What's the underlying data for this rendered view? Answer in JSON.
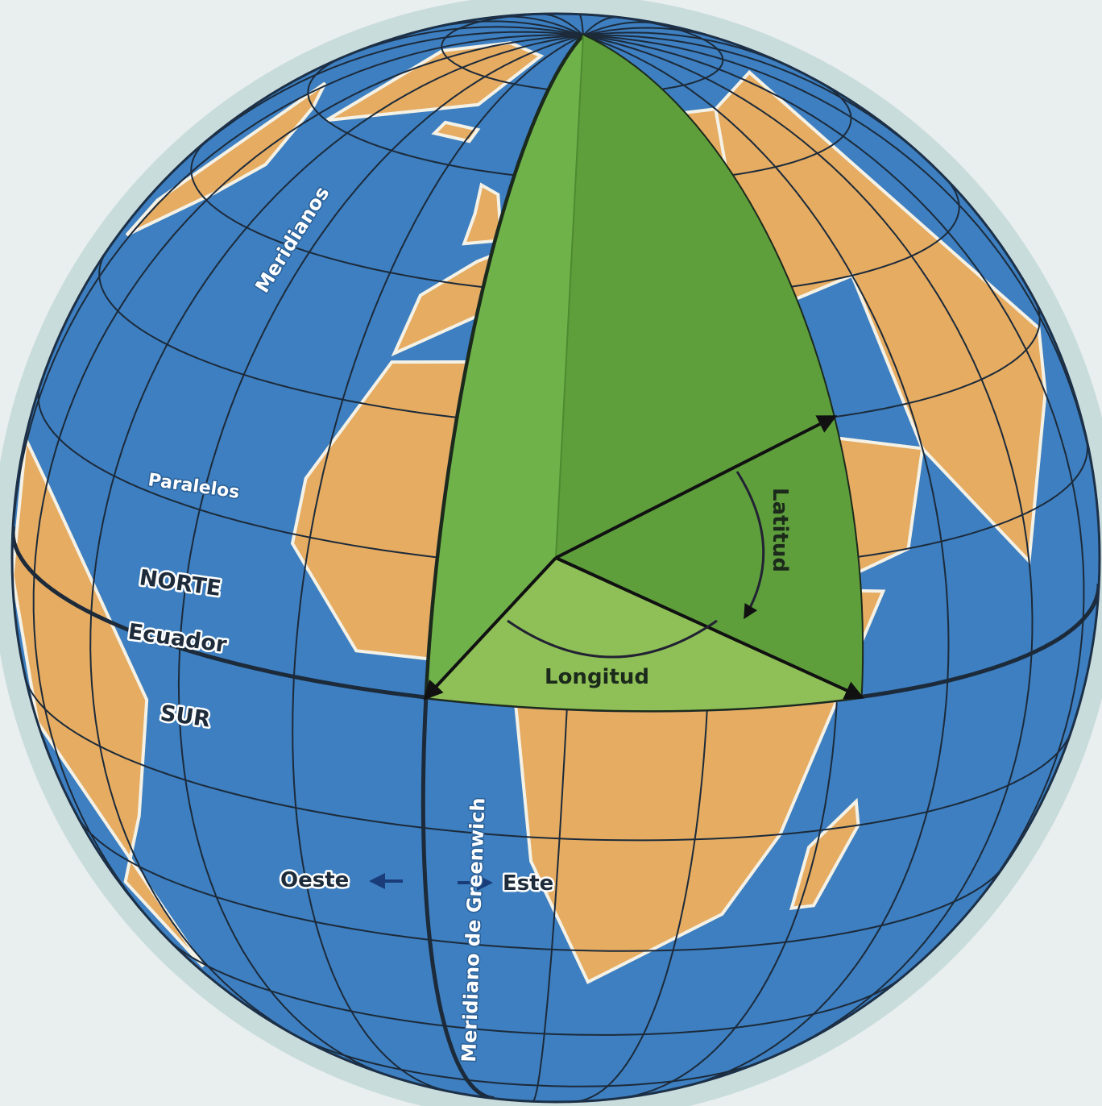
{
  "labels": {
    "meridianos": "Meridianos",
    "paralelos": "Paralelos",
    "norte": "NORTE",
    "ecuador": "Ecuador",
    "sur": "SUR",
    "oeste": "Oeste",
    "este": "Este",
    "greenwich": "Meridiano de Greenwich",
    "latitud": "Latitud",
    "longitud": "Longitud"
  }
}
